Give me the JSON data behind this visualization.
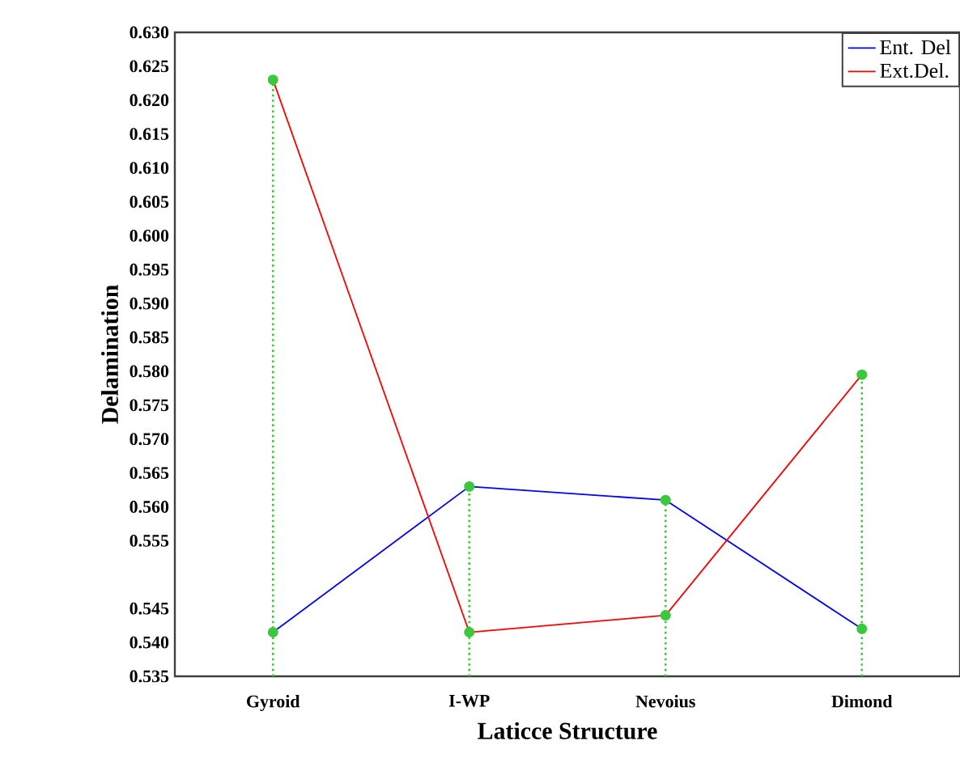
{
  "chart_data": {
    "type": "line",
    "xlabel": "Laticce Structure",
    "ylabel": "Delamination",
    "categories": [
      "Gyroid",
      "I-WP",
      "Nevoius",
      "Dimond"
    ],
    "series": [
      {
        "name": "Ent. Del",
        "color": "#0000ff",
        "values": [
          0.5415,
          0.563,
          0.561,
          0.542
        ]
      },
      {
        "name": "Ext.Del.",
        "color": "#ff0000",
        "values": [
          0.623,
          0.5415,
          0.544,
          0.5795
        ]
      },
      {
        "type": "lollipop",
        "color": "#3cc83c",
        "values": [
          0.623,
          0.563,
          0.561,
          0.5795
        ]
      }
    ],
    "ylim": [
      0.535,
      0.63
    ],
    "yticks": [
      {
        "value": 0.535,
        "label": "0.535"
      },
      {
        "value": 0.54,
        "label": "0.540"
      },
      {
        "value": 0.545,
        "label": "0.545"
      },
      {
        "value": 0.555,
        "label": "0.555"
      },
      {
        "value": 0.56,
        "label": "0.560"
      },
      {
        "value": 0.565,
        "label": "0.565"
      },
      {
        "value": 0.57,
        "label": "0.570"
      },
      {
        "value": 0.575,
        "label": "0.575"
      },
      {
        "value": 0.58,
        "label": "0.580"
      },
      {
        "value": 0.585,
        "label": "0.585"
      },
      {
        "value": 0.59,
        "label": "0.590"
      },
      {
        "value": 0.595,
        "label": "0.595"
      },
      {
        "value": 0.6,
        "label": "0.600"
      },
      {
        "value": 0.605,
        "label": "0.605"
      },
      {
        "value": 0.61,
        "label": "0.610"
      },
      {
        "value": 0.615,
        "label": "0.615"
      },
      {
        "value": 0.62,
        "label": "0.620"
      },
      {
        "value": 0.625,
        "label": "0.625"
      },
      {
        "value": 0.63,
        "label": "0.630"
      }
    ],
    "legend": "top right",
    "marker": "circle",
    "grid": false,
    "line_style": "solid"
  }
}
